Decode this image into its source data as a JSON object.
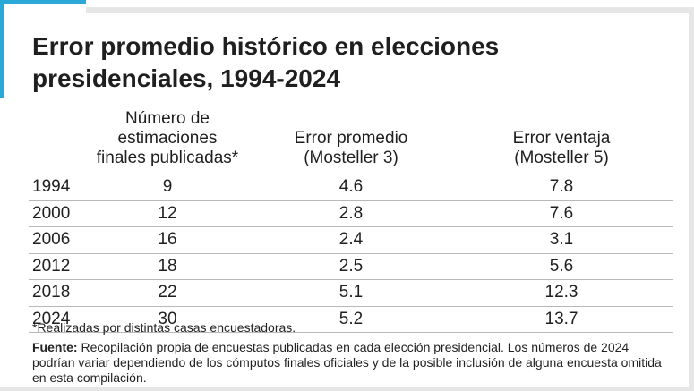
{
  "title": "Error promedio histórico en elecciones presidenciales, 1994-2024",
  "chart_data": {
    "type": "table",
    "title": "Error promedio histórico en elecciones presidenciales, 1994-2024",
    "columns": [
      {
        "line1": "",
        "line2": ""
      },
      {
        "line1": "Número de estimaciones",
        "line2": "finales publicadas*"
      },
      {
        "line1": "Error promedio",
        "line2": "(Mosteller 3)"
      },
      {
        "line1": "Error ventaja",
        "line2": "(Mosteller 5)"
      }
    ],
    "rows": [
      {
        "year": "1994",
        "estimaciones": "9",
        "error_promedio": "4.6",
        "error_ventaja": "7.8"
      },
      {
        "year": "2000",
        "estimaciones": "12",
        "error_promedio": "2.8",
        "error_ventaja": "7.6"
      },
      {
        "year": "2006",
        "estimaciones": "16",
        "error_promedio": "2.4",
        "error_ventaja": "3.1"
      },
      {
        "year": "2012",
        "estimaciones": "18",
        "error_promedio": "2.5",
        "error_ventaja": "5.6"
      },
      {
        "year": "2018",
        "estimaciones": "22",
        "error_promedio": "5.1",
        "error_ventaja": "12.3"
      },
      {
        "year": "2024",
        "estimaciones": "30",
        "error_promedio": "5.2",
        "error_ventaja": "13.7"
      }
    ]
  },
  "footnote": "*Realizadas por distintas casas encuestadoras.",
  "source_label": "Fuente:",
  "source_text": "Recopilación propia de encuestas publicadas en cada elección presidencial. Los números de 2024 podrían variar dependiendo de los cómputos finales oficiales y de la posible inclusión de alguna encuesta omitida en esta compilación.",
  "colors": {
    "accent": "#2aa8d8",
    "rule": "#b8b8b8",
    "shadow": "#e6e6e6"
  }
}
